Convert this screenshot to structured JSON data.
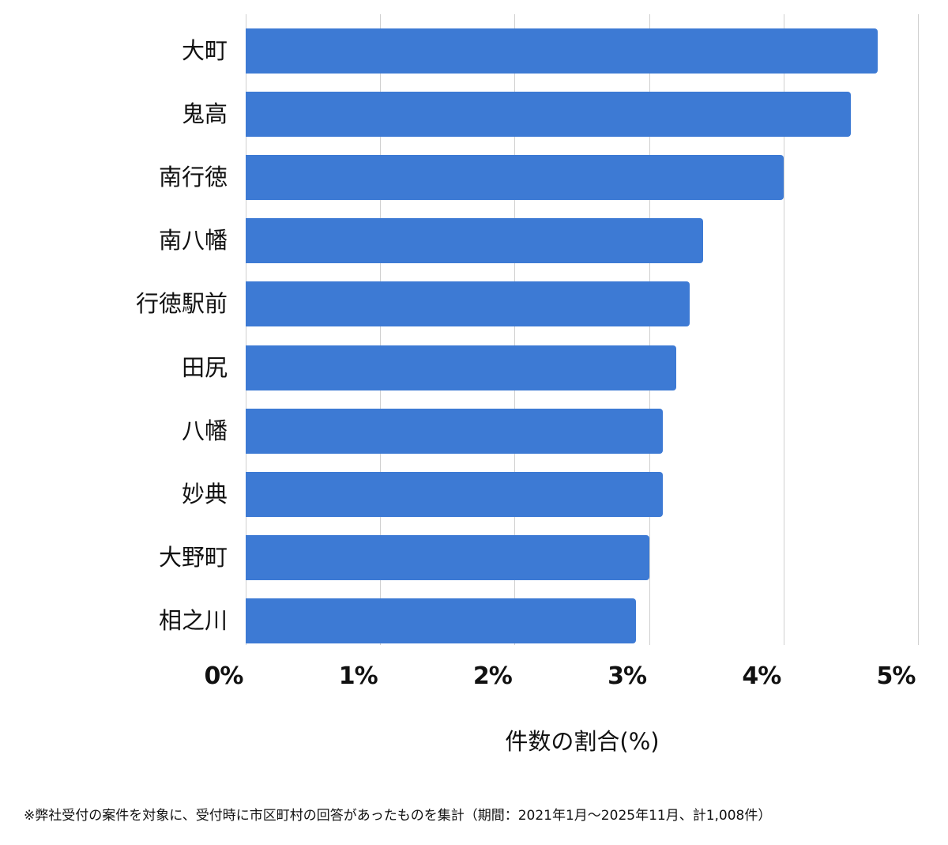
{
  "chart_data": {
    "type": "bar",
    "orientation": "horizontal",
    "categories": [
      "大町",
      "鬼高",
      "南行徳",
      "南八幡",
      "行徳駅前",
      "田尻",
      "八幡",
      "妙典",
      "大野町",
      "相之川"
    ],
    "values": [
      4.7,
      4.5,
      4.0,
      3.4,
      3.3,
      3.2,
      3.1,
      3.1,
      3.0,
      2.9
    ],
    "title": "",
    "xlabel": "件数の割合(%)",
    "ylabel": "",
    "xlim": [
      0,
      5
    ],
    "xticks": [
      "0%",
      "1%",
      "2%",
      "3%",
      "4%",
      "5%"
    ],
    "grid": true,
    "legend": "none",
    "bar_color": "#3d7ad4"
  },
  "axis": {
    "ticks": [
      "0%",
      "1%",
      "2%",
      "3%",
      "4%",
      "5%"
    ],
    "xlabel": "件数の割合(%)"
  },
  "colors": {
    "bar": "#3d7ad4",
    "grid": "#d0d0d0"
  },
  "footnote": "※弊社受付の案件を対象に、受付時に市区町村の回答があったものを集計（期間：2021年1月～2025年11月、計1,008件）"
}
